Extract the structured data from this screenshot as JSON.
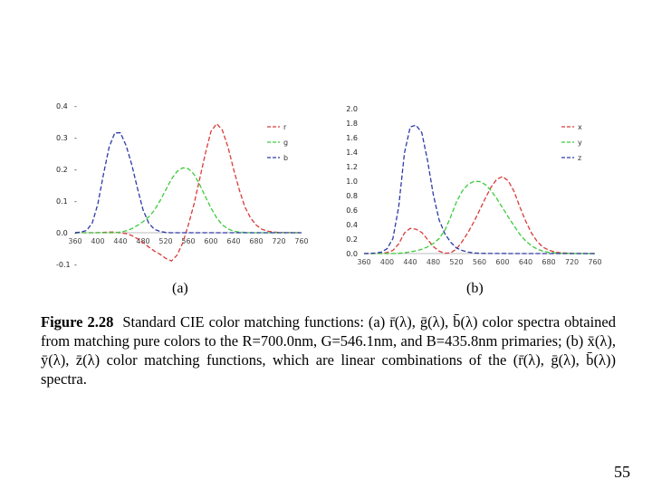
{
  "figure": {
    "caption_label": "Figure 2.28",
    "caption_text": "Standard CIE color matching functions: (a) r̄(λ), ḡ(λ), b̄(λ) color spectra obtained from matching pure colors to the R=700.0nm, G=546.1nm, and B=435.8nm primaries; (b) x̄(λ), ȳ(λ), z̄(λ) color matching functions, which are linear combinations of the (r̄(λ), ḡ(λ), b̄(λ)) spectra.",
    "panel_a_label": "(a)",
    "panel_b_label": "(b)"
  },
  "page_number": "55",
  "colors": {
    "red": "#d93b3b",
    "green": "#3ccb3c",
    "blue": "#2d3aa8"
  },
  "chart_data": [
    {
      "type": "line",
      "title": "",
      "xlabel": "",
      "ylabel": "",
      "xlim": [
        360,
        760
      ],
      "ylim": [
        -0.1,
        0.4
      ],
      "x_tick_labels": [
        "360",
        "400",
        "440",
        "480",
        "520",
        "560",
        "600",
        "640",
        "680",
        "720",
        "760"
      ],
      "y_tick_labels": [
        "0.4",
        "0.3",
        "0.2",
        "0.1",
        "0.0",
        "-0.1"
      ],
      "y_tick_values": [
        0.4,
        0.3,
        0.2,
        0.1,
        0.0,
        -0.1
      ],
      "grid": false,
      "legend_position": "top-right",
      "x": [
        360,
        370,
        380,
        390,
        400,
        410,
        420,
        430,
        440,
        450,
        460,
        470,
        480,
        490,
        500,
        510,
        520,
        530,
        540,
        550,
        560,
        570,
        580,
        590,
        600,
        610,
        620,
        630,
        640,
        650,
        660,
        670,
        680,
        690,
        700,
        710,
        720,
        730,
        740,
        750,
        760
      ],
      "series": [
        {
          "name": "r",
          "color": "red",
          "values": [
            0,
            0,
            0,
            0,
            0.0003,
            0.0012,
            0.002,
            0.002,
            -0.0003,
            -0.0028,
            -0.009,
            -0.019,
            -0.031,
            -0.045,
            -0.058,
            -0.068,
            -0.081,
            -0.089,
            -0.071,
            -0.032,
            0.025,
            0.091,
            0.17,
            0.25,
            0.32,
            0.344,
            0.324,
            0.27,
            0.2,
            0.135,
            0.081,
            0.046,
            0.024,
            0.011,
            0.005,
            0.0022,
            0.001,
            0.0004,
            0.0002,
            0.0001,
            0
          ]
        },
        {
          "name": "g",
          "color": "green",
          "values": [
            0,
            0,
            0,
            0,
            0,
            0,
            0,
            0,
            0.002,
            0.006,
            0.013,
            0.023,
            0.035,
            0.05,
            0.071,
            0.101,
            0.135,
            0.169,
            0.193,
            0.205,
            0.202,
            0.184,
            0.152,
            0.114,
            0.078,
            0.047,
            0.025,
            0.012,
            0.005,
            0.002,
            0.001,
            0,
            0,
            0,
            0,
            0,
            0,
            0,
            0,
            0,
            0
          ]
        },
        {
          "name": "b",
          "color": "blue",
          "values": [
            0.0003,
            0.002,
            0.007,
            0.03,
            0.09,
            0.185,
            0.27,
            0.315,
            0.315,
            0.275,
            0.215,
            0.14,
            0.072,
            0.03,
            0.011,
            0.004,
            0.001,
            0,
            0,
            0,
            0,
            0,
            0,
            0,
            0,
            0,
            0,
            0,
            0,
            0,
            0,
            0,
            0,
            0,
            0,
            0,
            0,
            0,
            0,
            0,
            0
          ]
        }
      ]
    },
    {
      "type": "line",
      "title": "",
      "xlabel": "",
      "ylabel": "",
      "xlim": [
        360,
        760
      ],
      "ylim": [
        0,
        2.0
      ],
      "x_tick_labels": [
        "360",
        "400",
        "440",
        "480",
        "520",
        "560",
        "600",
        "640",
        "680",
        "720",
        "760"
      ],
      "y_tick_labels": [
        "2.0",
        "1.8",
        "1.6",
        "1.4",
        "1.2",
        "1.0",
        "0.8",
        "0.6",
        "0.4",
        "0.2",
        "0.0"
      ],
      "y_tick_values": [
        2.0,
        1.8,
        1.6,
        1.4,
        1.2,
        1.0,
        0.8,
        0.6,
        0.4,
        0.2,
        0.0
      ],
      "grid": false,
      "legend_position": "top-right",
      "x": [
        360,
        370,
        380,
        390,
        400,
        410,
        420,
        430,
        440,
        450,
        460,
        470,
        480,
        490,
        500,
        510,
        520,
        530,
        540,
        550,
        560,
        570,
        580,
        590,
        600,
        610,
        620,
        630,
        640,
        650,
        660,
        670,
        680,
        690,
        700,
        710,
        720,
        730,
        740,
        750,
        760
      ],
      "series": [
        {
          "name": "x",
          "color": "red",
          "values": [
            0,
            0.0004,
            0.0014,
            0.004,
            0.014,
            0.044,
            0.134,
            0.284,
            0.348,
            0.336,
            0.291,
            0.195,
            0.096,
            0.032,
            0.005,
            0.009,
            0.063,
            0.166,
            0.29,
            0.433,
            0.595,
            0.762,
            0.916,
            1.026,
            1.062,
            1.003,
            0.854,
            0.642,
            0.448,
            0.284,
            0.165,
            0.087,
            0.047,
            0.023,
            0.011,
            0.006,
            0.003,
            0.0014,
            0.0007,
            0.0003,
            0.0002
          ]
        },
        {
          "name": "y",
          "color": "green",
          "values": [
            0,
            0,
            0,
            0.0001,
            0.0004,
            0.0012,
            0.004,
            0.0116,
            0.023,
            0.038,
            0.06,
            0.091,
            0.139,
            0.208,
            0.323,
            0.503,
            0.71,
            0.862,
            0.954,
            0.995,
            0.995,
            0.952,
            0.87,
            0.757,
            0.631,
            0.503,
            0.381,
            0.265,
            0.175,
            0.107,
            0.061,
            0.032,
            0.017,
            0.0082,
            0.0041,
            0.0021,
            0.001,
            0.0005,
            0.0003,
            0.0001,
            0
          ]
        },
        {
          "name": "z",
          "color": "blue",
          "values": [
            0.0006,
            0.0019,
            0.0065,
            0.02,
            0.068,
            0.207,
            0.646,
            1.386,
            1.747,
            1.772,
            1.669,
            1.288,
            0.813,
            0.465,
            0.272,
            0.158,
            0.078,
            0.042,
            0.02,
            0.0087,
            0.0039,
            0.0021,
            0.0017,
            0.0011,
            0.0008,
            0.0003,
            0.0002,
            0,
            0,
            0,
            0,
            0,
            0,
            0,
            0,
            0,
            0,
            0,
            0,
            0,
            0
          ]
        }
      ]
    }
  ]
}
